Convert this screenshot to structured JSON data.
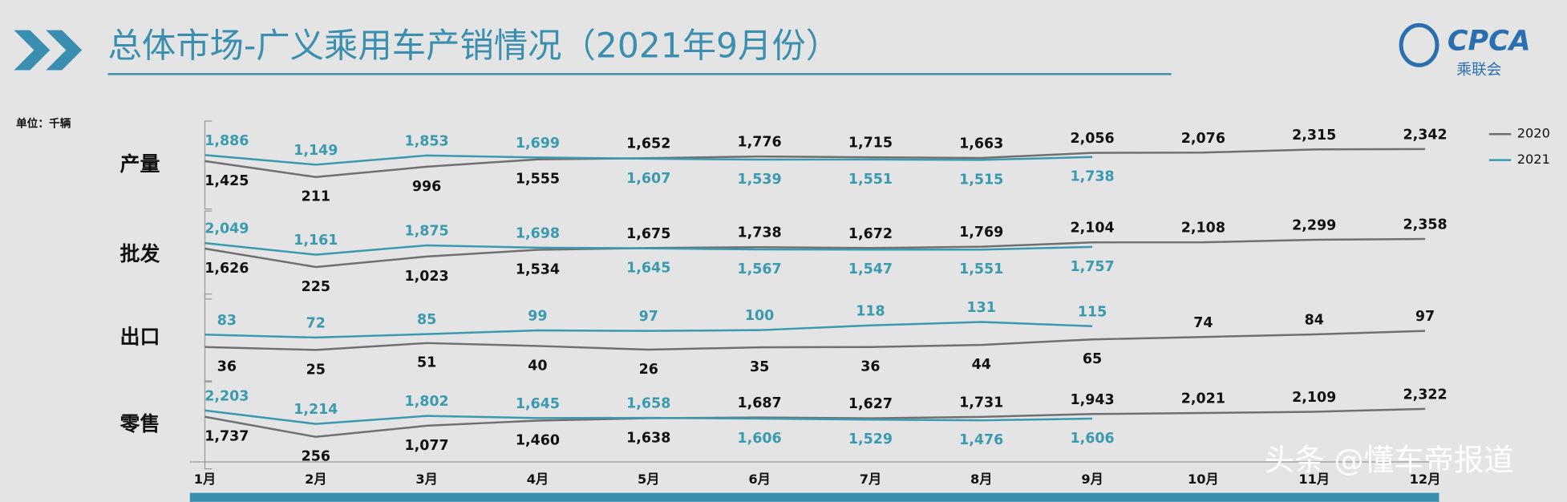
{
  "header": {
    "title": "总体市场-广义乘用车产销情况（2021年9月份）",
    "logo": "CPCA",
    "logo_sub": "乘联会",
    "unit": "单位：千辆",
    "watermark": "头条 @懂车帝报道"
  },
  "chart_data": [
    {
      "type": "line",
      "label": "产量",
      "series": [
        {
          "name": "2020",
          "color": "#707070",
          "values": [
            1425,
            211,
            996,
            1555,
            1652,
            1776,
            1715,
            1663,
            2056,
            2076,
            2315,
            2342
          ],
          "value_labels": [
            "1,425",
            "211",
            "996",
            "1,555",
            "1,652",
            "1,776",
            "1,715",
            "1,663",
            "2,056",
            "2,076",
            "2,315",
            "2,342"
          ]
        },
        {
          "name": "2021",
          "color": "#3a9ab0",
          "values": [
            1886,
            1149,
            1853,
            1699,
            1607,
            1539,
            1551,
            1515,
            1738,
            null,
            null,
            null
          ],
          "value_labels": [
            "1,886",
            "1,149",
            "1,853",
            "1,699",
            "1,607",
            "1,539",
            "1,551",
            "1,515",
            "1,738",
            null,
            null,
            null
          ]
        }
      ]
    },
    {
      "type": "line",
      "label": "批发",
      "series": [
        {
          "color": "#707070",
          "values": [
            1626,
            225,
            1023,
            1534,
            1675,
            1738,
            1672,
            1769,
            2104,
            2108,
            2299,
            2358
          ],
          "value_labels": [
            "1,626",
            "225",
            "1,023",
            "1,534",
            "1,675",
            "1,738",
            "1,672",
            "1,769",
            "2,104",
            "2,108",
            "2,299",
            "2,358"
          ]
        },
        {
          "color": "#3a9ab0",
          "values": [
            2049,
            1161,
            1875,
            1698,
            1645,
            1567,
            1547,
            1551,
            1757,
            null,
            null,
            null
          ],
          "value_labels": [
            "2,049",
            "1,161",
            "1,875",
            "1,698",
            "1,645",
            "1,567",
            "1,547",
            "1,551",
            "1,757",
            null,
            null,
            null
          ]
        }
      ]
    },
    {
      "type": "line",
      "label": "出口",
      "series": [
        {
          "color": "#707070",
          "values": [
            36,
            25,
            51,
            40,
            26,
            35,
            36,
            44,
            65,
            74,
            84,
            97
          ]
        },
        {
          "color": "#3a9ab0",
          "values": [
            83,
            72,
            85,
            99,
            97,
            100,
            118,
            131,
            115,
            null,
            null,
            null
          ]
        }
      ]
    },
    {
      "type": "line",
      "label": "零售",
      "categories": [
        "1月",
        "2月",
        "3月",
        "4月",
        "5月",
        "6月",
        "7月",
        "8月",
        "9月",
        "10月",
        "11月",
        "12月"
      ],
      "series": [
        {
          "color": "#707070",
          "values": [
            1737,
            256,
            1077,
            1460,
            1638,
            1687,
            1627,
            1731,
            1943,
            2021,
            2109,
            2322
          ],
          "value_labels": [
            "1,737",
            "256",
            "1,077",
            "1,460",
            "1,638",
            "1,687",
            "1,627",
            "1,731",
            "1,943",
            "2,021",
            "2,109",
            "2,322"
          ]
        },
        {
          "color": "#3a9ab0",
          "values": [
            2203,
            1214,
            1802,
            1645,
            1658,
            1606,
            1529,
            1476,
            1606,
            null,
            null,
            null
          ],
          "value_labels": [
            "2,203",
            "1,214",
            "1,802",
            "1,645",
            "1,658",
            "1,606",
            "1,529",
            "1,476",
            "1,606",
            null,
            null,
            null
          ]
        }
      ]
    }
  ]
}
